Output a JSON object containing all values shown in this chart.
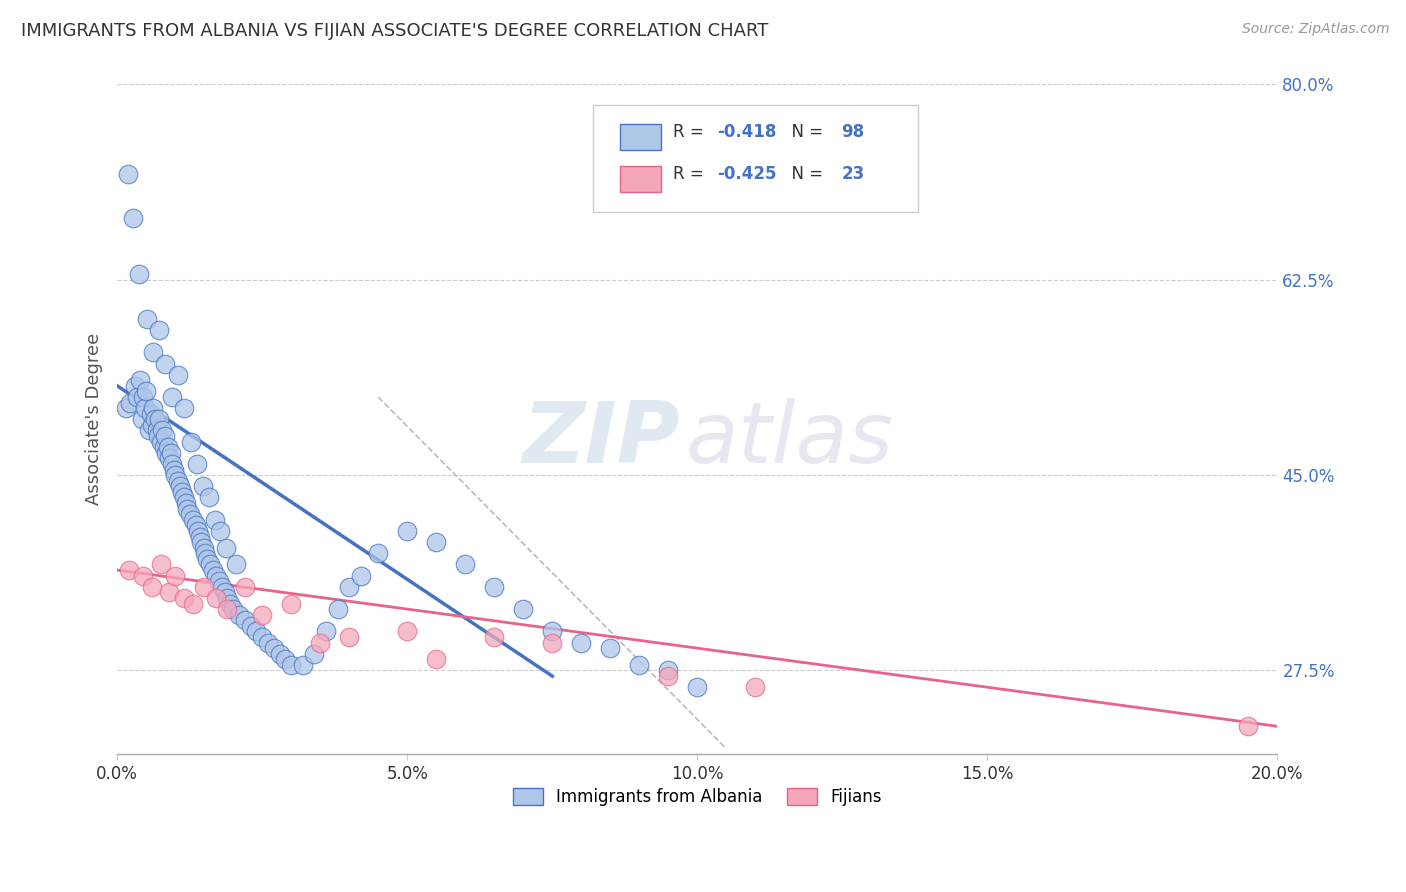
{
  "title": "IMMIGRANTS FROM ALBANIA VS FIJIAN ASSOCIATE'S DEGREE CORRELATION CHART",
  "source": "Source: ZipAtlas.com",
  "ylabel": "Associate's Degree",
  "legend_label1": "Immigrants from Albania",
  "legend_label2": "Fijians",
  "legend_r1_val": "-0.418",
  "legend_n1_val": "98",
  "legend_r2_val": "-0.425",
  "legend_n2_val": "23",
  "xlim": [
    0.0,
    20.0
  ],
  "ylim": [
    20.0,
    80.0
  ],
  "xticks": [
    0.0,
    5.0,
    10.0,
    15.0,
    20.0
  ],
  "yticks": [
    27.5,
    45.0,
    62.5,
    80.0
  ],
  "yticks_right": [
    27.5,
    45.0,
    62.5,
    80.0
  ],
  "color_blue_fill": "#AEC6E8",
  "color_blue_edge": "#4472C4",
  "color_pink_fill": "#F4A7B9",
  "color_pink_edge": "#E8638C",
  "color_blue_line": "#4472C4",
  "color_pink_line": "#E8638C",
  "color_dashed": "#BBBBBB",
  "background_color": "#FFFFFF",
  "watermark_zip": "ZIP",
  "watermark_atlas": "atlas",
  "blue_dots_x": [
    0.15,
    0.22,
    0.3,
    0.35,
    0.4,
    0.42,
    0.45,
    0.48,
    0.5,
    0.55,
    0.58,
    0.6,
    0.62,
    0.65,
    0.68,
    0.7,
    0.72,
    0.75,
    0.78,
    0.8,
    0.82,
    0.85,
    0.88,
    0.9,
    0.92,
    0.95,
    0.98,
    1.0,
    1.05,
    1.08,
    1.12,
    1.15,
    1.18,
    1.2,
    1.25,
    1.3,
    1.35,
    1.4,
    1.42,
    1.45,
    1.5,
    1.52,
    1.55,
    1.6,
    1.65,
    1.7,
    1.75,
    1.8,
    1.85,
    1.9,
    1.95,
    2.0,
    2.1,
    2.2,
    2.3,
    2.4,
    2.5,
    2.6,
    2.7,
    2.8,
    2.9,
    3.0,
    3.2,
    3.4,
    3.6,
    3.8,
    4.0,
    4.2,
    4.5,
    5.0,
    5.5,
    6.0,
    6.5,
    7.0,
    7.5,
    8.0,
    8.5,
    9.0,
    9.5,
    10.0,
    0.18,
    0.28,
    0.38,
    0.52,
    0.62,
    0.72,
    0.82,
    0.95,
    1.05,
    1.15,
    1.28,
    1.38,
    1.48,
    1.58,
    1.68,
    1.78,
    1.88,
    2.05
  ],
  "blue_dots_y": [
    51.0,
    51.5,
    53.0,
    52.0,
    53.5,
    50.0,
    52.0,
    51.0,
    52.5,
    49.0,
    50.5,
    49.5,
    51.0,
    50.0,
    49.0,
    48.5,
    50.0,
    48.0,
    49.0,
    47.5,
    48.5,
    47.0,
    47.5,
    46.5,
    47.0,
    46.0,
    45.5,
    45.0,
    44.5,
    44.0,
    43.5,
    43.0,
    42.5,
    42.0,
    41.5,
    41.0,
    40.5,
    40.0,
    39.5,
    39.0,
    38.5,
    38.0,
    37.5,
    37.0,
    36.5,
    36.0,
    35.5,
    35.0,
    34.5,
    34.0,
    33.5,
    33.0,
    32.5,
    32.0,
    31.5,
    31.0,
    30.5,
    30.0,
    29.5,
    29.0,
    28.5,
    28.0,
    28.0,
    29.0,
    31.0,
    33.0,
    35.0,
    36.0,
    38.0,
    40.0,
    39.0,
    37.0,
    35.0,
    33.0,
    31.0,
    30.0,
    29.5,
    28.0,
    27.5,
    26.0,
    72.0,
    68.0,
    63.0,
    59.0,
    56.0,
    58.0,
    55.0,
    52.0,
    54.0,
    51.0,
    48.0,
    46.0,
    44.0,
    43.0,
    41.0,
    40.0,
    38.5,
    37.0
  ],
  "pink_dots_x": [
    0.2,
    0.45,
    0.6,
    0.75,
    0.9,
    1.0,
    1.15,
    1.3,
    1.5,
    1.7,
    1.9,
    2.2,
    2.5,
    3.0,
    3.5,
    4.0,
    5.0,
    5.5,
    6.5,
    7.5,
    9.5,
    11.0,
    19.5
  ],
  "pink_dots_y": [
    36.5,
    36.0,
    35.0,
    37.0,
    34.5,
    36.0,
    34.0,
    33.5,
    35.0,
    34.0,
    33.0,
    35.0,
    32.5,
    33.5,
    30.0,
    30.5,
    31.0,
    28.5,
    30.5,
    30.0,
    27.0,
    26.0,
    22.5
  ],
  "blue_line_x": [
    0.0,
    7.5
  ],
  "blue_line_y": [
    53.0,
    27.0
  ],
  "pink_line_x": [
    0.0,
    20.0
  ],
  "pink_line_y": [
    36.5,
    22.5
  ],
  "dashed_line_x": [
    4.5,
    10.5
  ],
  "dashed_line_y": [
    52.0,
    20.5
  ]
}
